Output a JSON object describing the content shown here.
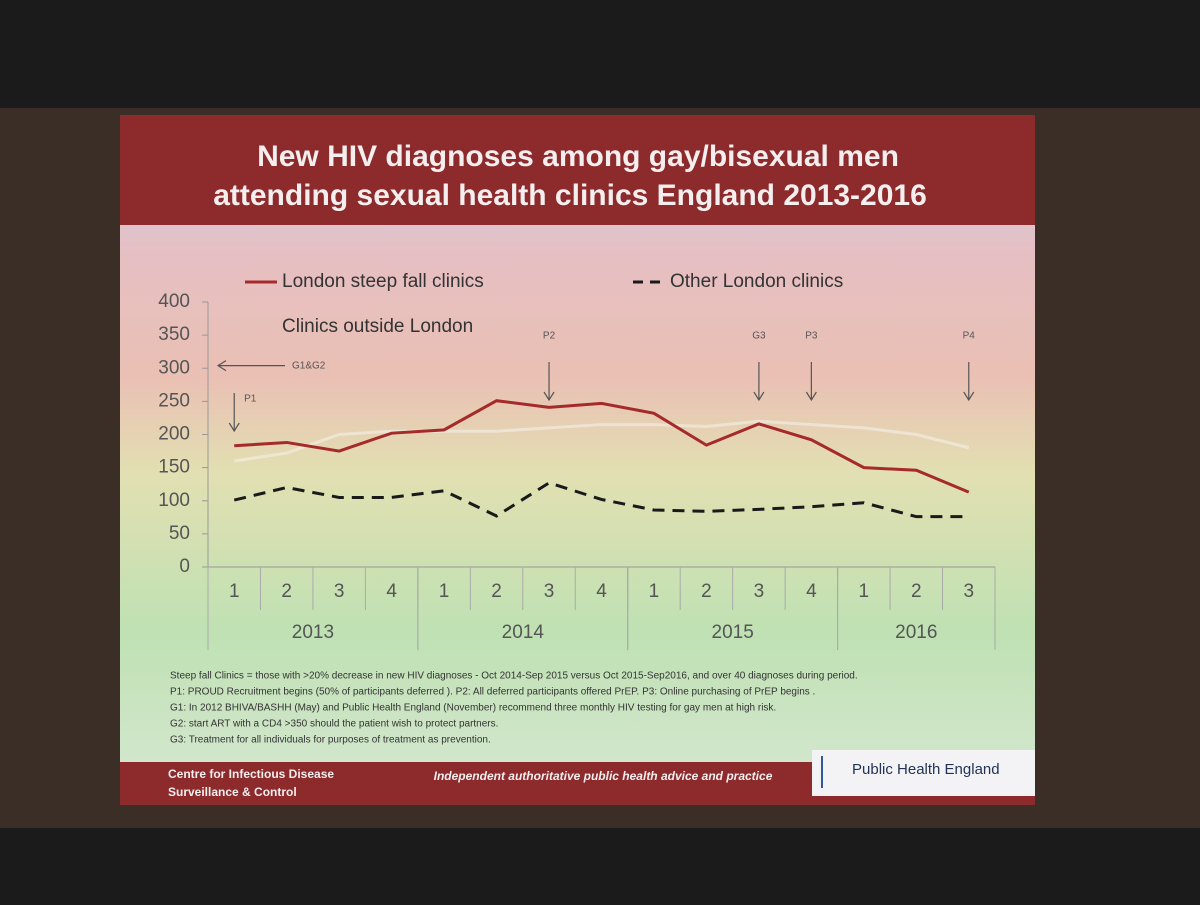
{
  "slide": {
    "title": [
      "New HIV diagnoses among gay/bisexual men",
      "attending sexual health clinics England 2013-2016"
    ],
    "footnotes": [
      "Steep fall Clinics = those with >20% decrease in new HIV diagnoses - Oct 2014-Sep 2015 versus Oct 2015-Sep2016, and over 40 diagnoses during period.",
      "P1: PROUD Recruitment begins (50% of participants deferred ). P2: All deferred participants offered PrEP.  P3: Online purchasing of PrEP begins .",
      "G1: In 2012 BHIVA/BASHH (May) and Public Health England (November) recommend three monthly HIV testing for gay men at high risk.",
      "G2: start ART with a CD4 >350 should the patient wish to protect partners.",
      "G3: Treatment for all individuals for purposes of treatment as prevention."
    ],
    "footer_left": [
      "Centre for Infectious Disease",
      "Surveillance & Control"
    ],
    "footer_tagline": "Independent authoritative public health advice and practice",
    "footer_logo": "Public Health England"
  },
  "chart_data": {
    "type": "line",
    "categories": [
      "1",
      "2",
      "3",
      "4",
      "1",
      "2",
      "3",
      "4",
      "1",
      "2",
      "3",
      "4",
      "1",
      "2",
      "3"
    ],
    "category_groups": [
      {
        "label": "2013",
        "size": 4
      },
      {
        "label": "2014",
        "size": 4
      },
      {
        "label": "2015",
        "size": 4
      },
      {
        "label": "2016",
        "size": 3
      }
    ],
    "series": [
      {
        "name": "London steep fall clinics",
        "color": "#a52a2a",
        "dash": "solid",
        "values": [
          183,
          188,
          175,
          202,
          207,
          251,
          241,
          247,
          232,
          184,
          216,
          192,
          150,
          146,
          113
        ]
      },
      {
        "name": "Other London clinics",
        "color": "#1a1a1a",
        "dash": "dashed",
        "values": [
          101,
          120,
          105,
          105,
          115,
          77,
          127,
          102,
          86,
          84,
          87,
          91,
          97,
          76,
          76
        ]
      },
      {
        "name": "Clinics outside London",
        "color": "#f4f0e8",
        "dash": "solid",
        "values": [
          160,
          172,
          200,
          205,
          205,
          205,
          210,
          215,
          215,
          212,
          220,
          215,
          210,
          200,
          180
        ]
      }
    ],
    "ylim": [
      0,
      400
    ],
    "yticks": [
      0,
      50,
      100,
      150,
      200,
      250,
      300,
      350,
      400
    ],
    "annotations": [
      {
        "text": "P1",
        "category": 0
      },
      {
        "text": "P2",
        "category": 6
      },
      {
        "text": "G3",
        "category": 10
      },
      {
        "text": "P3",
        "category": 11
      },
      {
        "text": "P4",
        "category": 14
      }
    ],
    "left_annotation": {
      "text": "G1&G2",
      "y": 310
    }
  }
}
